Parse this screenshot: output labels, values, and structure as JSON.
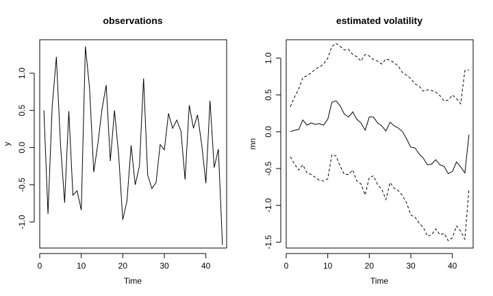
{
  "chart_data": [
    {
      "type": "line",
      "title": "observations",
      "xlabel": "Time",
      "ylabel": "y",
      "xlim": [
        0,
        45
      ],
      "ylim": [
        -1.35,
        1.45
      ],
      "xticks": [
        0,
        10,
        20,
        30,
        40
      ],
      "yticks": [
        -1.0,
        -0.5,
        0.0,
        0.5,
        1.0
      ],
      "ytick_labels": [
        "-1.0",
        "-0.5",
        "0.0",
        "0.5",
        "1.0"
      ],
      "grid": false,
      "x": [
        1,
        2,
        3,
        4,
        5,
        6,
        7,
        8,
        9,
        10,
        11,
        12,
        13,
        14,
        15,
        16,
        17,
        18,
        19,
        20,
        21,
        22,
        23,
        24,
        25,
        26,
        27,
        28,
        29,
        30,
        31,
        32,
        33,
        34,
        35,
        36,
        37,
        38,
        39,
        40,
        41,
        42,
        43,
        44
      ],
      "series": [
        {
          "style": "solid",
          "values": [
            0.5,
            -0.89,
            0.55,
            1.22,
            0.05,
            -0.74,
            0.49,
            -0.64,
            -0.58,
            -0.84,
            1.36,
            0.8,
            -0.33,
            0.05,
            0.52,
            0.84,
            -0.18,
            0.5,
            -0.1,
            -0.97,
            -0.72,
            0.03,
            -0.5,
            -0.25,
            0.93,
            -0.37,
            -0.55,
            -0.47,
            0.04,
            -0.03,
            0.46,
            0.26,
            0.37,
            0.22,
            -0.43,
            0.57,
            0.26,
            0.44,
            0.04,
            -0.48,
            0.63,
            -0.27,
            -0.02,
            -1.31
          ]
        }
      ]
    },
    {
      "type": "line",
      "title": "estimated volatility",
      "xlabel": "Time",
      "ylabel": "mn",
      "xlim": [
        0,
        45
      ],
      "ylim": [
        -1.58,
        1.25
      ],
      "xticks": [
        0,
        10,
        20,
        30,
        40
      ],
      "yticks": [
        -1.5,
        -1.0,
        -0.5,
        0.0,
        0.5,
        1.0
      ],
      "ytick_labels": [
        "-1.5",
        "-1.0",
        "-0.5",
        "0.0",
        "0.5",
        "1.0"
      ],
      "grid": false,
      "x": [
        1,
        2,
        3,
        4,
        5,
        6,
        7,
        8,
        9,
        10,
        11,
        12,
        13,
        14,
        15,
        16,
        17,
        18,
        19,
        20,
        21,
        22,
        23,
        24,
        25,
        26,
        27,
        28,
        29,
        30,
        31,
        32,
        33,
        34,
        35,
        36,
        37,
        38,
        39,
        40,
        41,
        42,
        43,
        44
      ],
      "series": [
        {
          "style": "dashed",
          "values": [
            0.34,
            0.47,
            0.58,
            0.74,
            0.76,
            0.8,
            0.85,
            0.88,
            0.92,
            1.0,
            1.16,
            1.2,
            1.16,
            1.11,
            1.12,
            1.05,
            1.02,
            0.96,
            1.05,
            1.03,
            0.98,
            0.96,
            0.92,
            0.99,
            0.97,
            0.94,
            0.89,
            0.8,
            0.77,
            0.72,
            0.65,
            0.62,
            0.55,
            0.57,
            0.56,
            0.54,
            0.49,
            0.42,
            0.43,
            0.5,
            0.45,
            0.38,
            0.83,
            0.84
          ]
        },
        {
          "style": "solid",
          "values": [
            0.0,
            0.02,
            0.03,
            0.16,
            0.09,
            0.12,
            0.1,
            0.11,
            0.09,
            0.17,
            0.4,
            0.42,
            0.35,
            0.24,
            0.2,
            0.27,
            0.17,
            0.12,
            0.02,
            0.2,
            0.2,
            0.12,
            0.08,
            0.01,
            0.13,
            0.08,
            0.05,
            0.0,
            -0.1,
            -0.21,
            -0.22,
            -0.3,
            -0.36,
            -0.45,
            -0.44,
            -0.38,
            -0.45,
            -0.47,
            -0.57,
            -0.54,
            -0.41,
            -0.48,
            -0.56,
            -0.04
          ]
        },
        {
          "style": "dashed",
          "values": [
            -0.34,
            -0.44,
            -0.52,
            -0.45,
            -0.56,
            -0.58,
            -0.62,
            -0.66,
            -0.67,
            -0.64,
            -0.31,
            -0.33,
            -0.47,
            -0.58,
            -0.58,
            -0.52,
            -0.67,
            -0.71,
            -0.86,
            -0.62,
            -0.6,
            -0.72,
            -0.78,
            -0.92,
            -0.69,
            -0.77,
            -0.8,
            -0.87,
            -0.97,
            -1.13,
            -1.16,
            -1.24,
            -1.3,
            -1.42,
            -1.4,
            -1.32,
            -1.4,
            -1.38,
            -1.48,
            -1.44,
            -1.28,
            -1.35,
            -1.46,
            -0.78
          ]
        }
      ]
    }
  ]
}
